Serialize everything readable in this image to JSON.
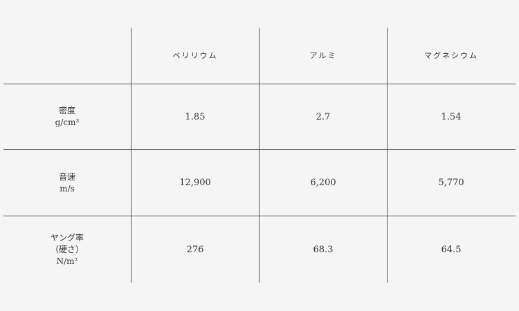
{
  "columns": [
    "ベリリウム",
    "アルミ",
    "マグネシウム"
  ],
  "rows": [
    {
      "label": [
        "密度",
        "g/cm³"
      ],
      "values": [
        "1.85",
        "2.7",
        "1.54"
      ]
    },
    {
      "label": [
        "音速",
        "m/s"
      ],
      "values": [
        "12,900",
        "6,200",
        "5,770"
      ]
    },
    {
      "label": [
        "ヤング率",
        "（硬さ）",
        "N/m²"
      ],
      "values": [
        "276",
        "68.3",
        "64.5"
      ]
    }
  ]
}
